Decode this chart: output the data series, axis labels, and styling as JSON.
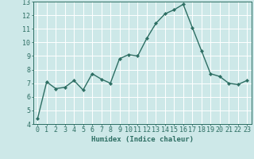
{
  "x": [
    0,
    1,
    2,
    3,
    4,
    5,
    6,
    7,
    8,
    9,
    10,
    11,
    12,
    13,
    14,
    15,
    16,
    17,
    18,
    19,
    20,
    21,
    22,
    23
  ],
  "y": [
    4.4,
    7.1,
    6.6,
    6.7,
    7.2,
    6.5,
    7.7,
    7.3,
    7.0,
    8.8,
    9.1,
    9.0,
    10.3,
    11.4,
    12.1,
    12.4,
    12.8,
    11.1,
    9.4,
    7.7,
    7.5,
    7.0,
    6.9,
    7.2
  ],
  "line_color": "#2d6e63",
  "marker": "D",
  "marker_size": 2.2,
  "bg_color": "#cde8e8",
  "grid_color": "#ffffff",
  "xlabel": "Humidex (Indice chaleur)",
  "ylim": [
    4,
    13
  ],
  "xlim": [
    -0.5,
    23.5
  ],
  "yticks": [
    4,
    5,
    6,
    7,
    8,
    9,
    10,
    11,
    12,
    13
  ],
  "xticks": [
    0,
    1,
    2,
    3,
    4,
    5,
    6,
    7,
    8,
    9,
    10,
    11,
    12,
    13,
    14,
    15,
    16,
    17,
    18,
    19,
    20,
    21,
    22,
    23
  ],
  "tick_color": "#2d6e63",
  "label_fontsize": 6.5,
  "tick_fontsize": 6.0,
  "line_width": 1.0
}
